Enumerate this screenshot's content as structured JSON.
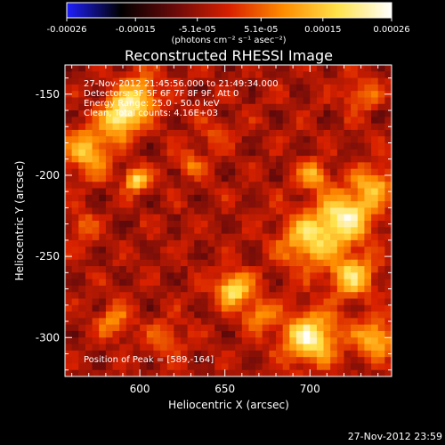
{
  "colorbar": {
    "tick_labels": [
      "-0.00026",
      "-0.00015",
      "-5.1e-05",
      "5.1e-05",
      "0.00015",
      "0.00026"
    ],
    "tick_values": [
      -0.00026,
      -0.00015,
      -5.1e-05,
      5.1e-05,
      0.00015,
      0.00026
    ],
    "range": [
      -0.00026,
      0.00026
    ],
    "unit_label": "(photons cm⁻² s⁻¹ asec⁻²)",
    "colors": [
      "#1f1fff",
      "#000000",
      "#6a0a0a",
      "#d82000",
      "#ff8c00",
      "#ffe24a",
      "#ffffff"
    ]
  },
  "chart_data": {
    "type": "heatmap",
    "title": "Reconstructed RHESSI Image",
    "xlabel": "Heliocentric X (arcsec)",
    "ylabel": "Heliocentric Y (arcsec)",
    "xlim": [
      556,
      748
    ],
    "ylim": [
      -324,
      -132
    ],
    "x_ticks": [
      600,
      650,
      700
    ],
    "y_ticks": [
      -150,
      -200,
      -250,
      -300
    ],
    "x_tick_labels": [
      "600",
      "650",
      "700"
    ],
    "y_tick_labels": [
      "-150",
      "-200",
      "-250",
      "-300"
    ],
    "grid": false,
    "pixel_size_arcsec": 4,
    "blobs": [
      {
        "x": 589,
        "y": -164,
        "amp": 0.00026,
        "sigma": 8
      },
      {
        "x": 570,
        "y": -185,
        "amp": 0.00018,
        "sigma": 10
      },
      {
        "x": 600,
        "y": -150,
        "amp": 0.00017,
        "sigma": 9
      },
      {
        "x": 598,
        "y": -203,
        "amp": 0.00022,
        "sigma": 5
      },
      {
        "x": 655,
        "y": -270,
        "amp": 0.00024,
        "sigma": 7
      },
      {
        "x": 670,
        "y": -285,
        "amp": 0.00013,
        "sigma": 7
      },
      {
        "x": 700,
        "y": -240,
        "amp": 0.0002,
        "sigma": 12
      },
      {
        "x": 722,
        "y": -225,
        "amp": 0.00024,
        "sigma": 11
      },
      {
        "x": 738,
        "y": -205,
        "amp": 0.00016,
        "sigma": 8
      },
      {
        "x": 702,
        "y": -200,
        "amp": 0.00017,
        "sigma": 6
      },
      {
        "x": 725,
        "y": -262,
        "amp": 0.0002,
        "sigma": 9
      },
      {
        "x": 700,
        "y": -300,
        "amp": 0.00026,
        "sigma": 11
      },
      {
        "x": 738,
        "y": -300,
        "amp": 0.0002,
        "sigma": 8
      },
      {
        "x": 730,
        "y": -150,
        "amp": 0.00012,
        "sigma": 7
      },
      {
        "x": 567,
        "y": -232,
        "amp": 0.0001,
        "sigma": 6
      },
      {
        "x": 585,
        "y": -290,
        "amp": 0.00012,
        "sigma": 7
      },
      {
        "x": 616,
        "y": -300,
        "amp": 0.0001,
        "sigma": 7
      },
      {
        "x": 630,
        "y": -192,
        "amp": 0.0001,
        "sigma": 6
      },
      {
        "x": 645,
        "y": -175,
        "amp": 8e-05,
        "sigma": 6
      }
    ],
    "background_min": -0.00026,
    "annotations": {
      "time_range": "27-Nov-2012 21:45:56.000 to 21:49:34.000",
      "detectors": "Detectors: 3F 5F 6F 7F 8F 9F, Att 0",
      "energy": "Energy Range: 25.0 - 50.0 keV",
      "method": "Clean, Total counts: 4.16E+03",
      "peak": "Position of Peak = [589,-164]"
    }
  },
  "footer": {
    "timestamp": "27-Nov-2012 23:59"
  }
}
